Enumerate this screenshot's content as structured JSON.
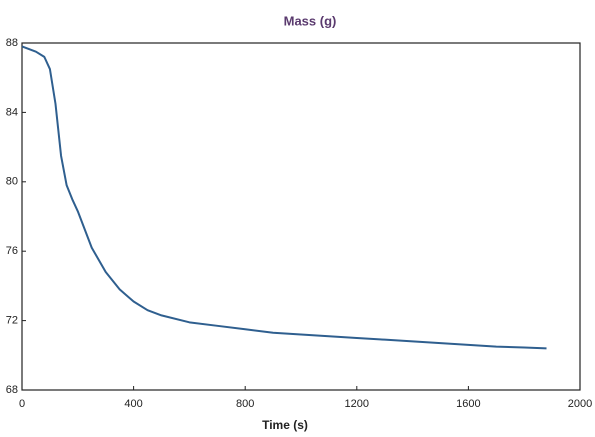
{
  "chart_data": {
    "type": "line",
    "title": "Mass (g)",
    "x_label": "Time (s)",
    "x": [
      0,
      50,
      80,
      100,
      120,
      140,
      160,
      180,
      200,
      250,
      300,
      350,
      400,
      450,
      500,
      600,
      700,
      800,
      900,
      1000,
      1100,
      1200,
      1300,
      1400,
      1500,
      1600,
      1700,
      1800,
      1880
    ],
    "series": [
      {
        "name": "Mass (g)",
        "color": "#2f5f8f",
        "values": [
          87.8,
          87.5,
          87.2,
          86.5,
          84.5,
          81.5,
          79.8,
          79.0,
          78.3,
          76.2,
          74.8,
          73.8,
          73.1,
          72.6,
          72.3,
          71.9,
          71.7,
          71.5,
          71.3,
          71.2,
          71.1,
          71.0,
          70.9,
          70.8,
          70.7,
          70.6,
          70.5,
          70.45,
          70.4
        ]
      }
    ],
    "xlim": [
      0,
      2000
    ],
    "xticks": [
      0,
      400,
      800,
      1200,
      1600,
      2000
    ],
    "ylim": [
      68,
      88
    ],
    "yticks": [
      68,
      72,
      76,
      80,
      84,
      88
    ]
  }
}
